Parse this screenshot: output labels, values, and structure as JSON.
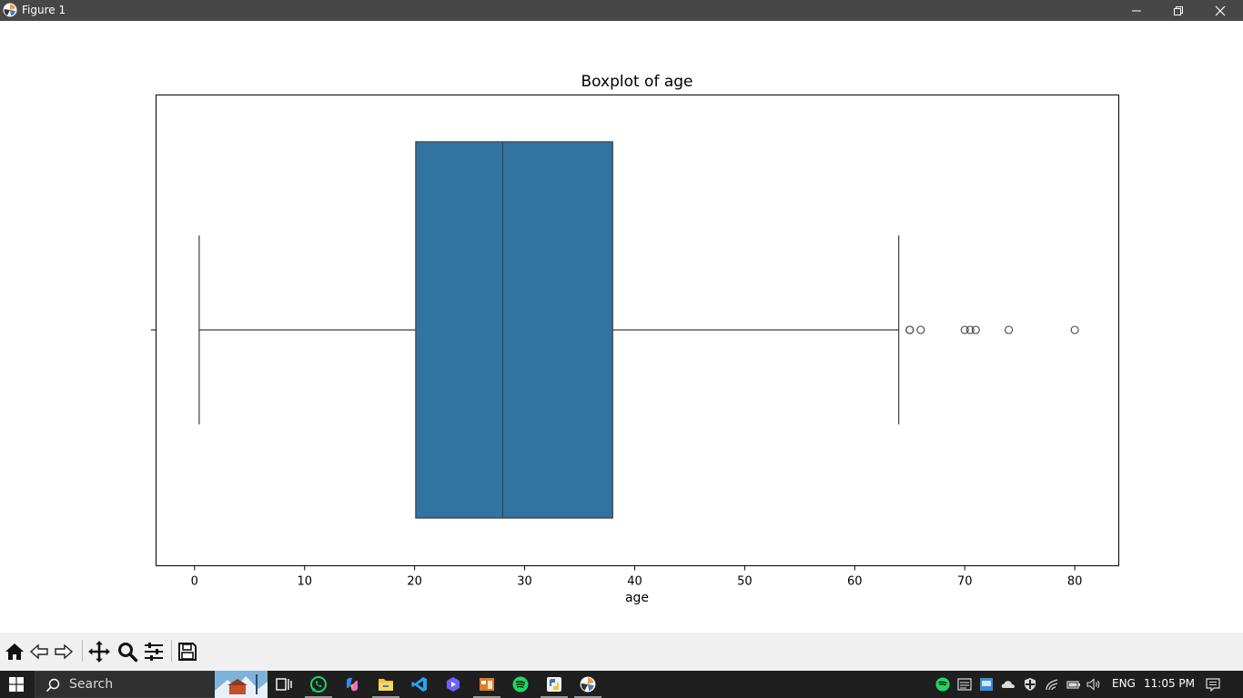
{
  "window": {
    "title": "Figure 1"
  },
  "chart_data": {
    "type": "boxplot",
    "title": "Boxplot of age",
    "xlabel": "age",
    "ylabel": "",
    "xlim": [
      -3.5,
      84
    ],
    "xticks": [
      0,
      10,
      20,
      30,
      40,
      50,
      60,
      70,
      80
    ],
    "xtick_labels": [
      "0",
      "10",
      "20",
      "30",
      "40",
      "50",
      "60",
      "70",
      "80"
    ],
    "grid": false,
    "box": {
      "whisker_low": 0.42,
      "q1": 20.1,
      "median": 28,
      "q3": 38,
      "whisker_high": 64,
      "outliers": [
        65,
        65,
        66,
        70,
        70.5,
        71,
        74,
        80
      ]
    },
    "colors": {
      "box_fill": "#3274a1",
      "line": "#3d3d3d"
    }
  },
  "toolbar": {
    "buttons": [
      "home-icon",
      "back-icon",
      "forward-icon",
      "pan-icon",
      "zoom-icon",
      "configure-subplots-icon",
      "save-icon"
    ]
  },
  "taskbar": {
    "search_placeholder": "Search",
    "language": "ENG",
    "time": "11:05 PM",
    "apps": [
      "task-view-icon",
      "whatsapp-icon",
      "copilot-icon",
      "file-explorer-icon",
      "vscode-icon",
      "media-app-icon",
      "app-icon",
      "spotify-icon",
      "python-icon",
      "matplotlib-icon"
    ]
  }
}
